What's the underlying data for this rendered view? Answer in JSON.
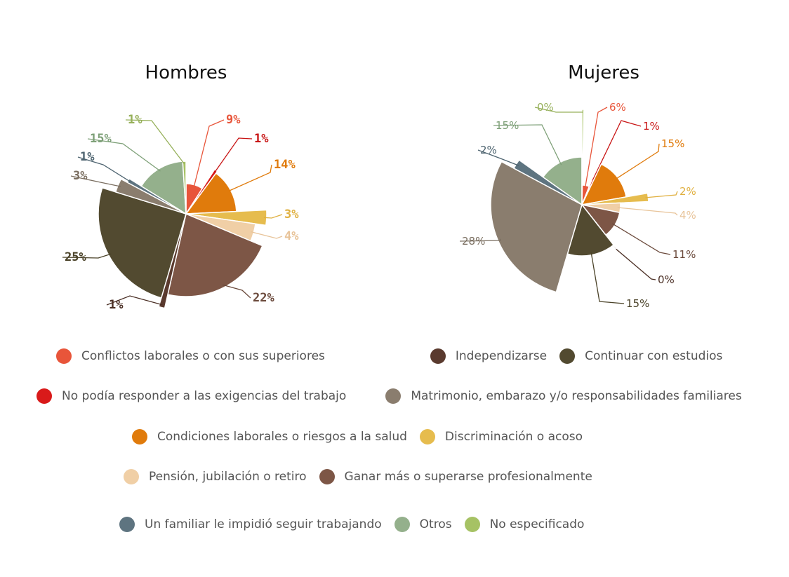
{
  "chart_data": [
    {
      "type": "pie",
      "title": "Hombres",
      "slices": [
        {
          "category": "Conflictos laborales o con sus superiores",
          "value": 9,
          "label": "9%"
        },
        {
          "category": "No podía responder a las exigencias del trabajo",
          "value": 1,
          "label": "1%"
        },
        {
          "category": "Condiciones laborales o riesgos a la salud",
          "value": 14,
          "label": "14%"
        },
        {
          "category": "Discriminación o acoso",
          "value": 3,
          "label": "3%"
        },
        {
          "category": "Pensión, jubilación o retiro",
          "value": 4,
          "label": "4%"
        },
        {
          "category": "Ganar más o superarse profesionalmente",
          "value": 22,
          "label": "22%"
        },
        {
          "category": "Independizarse",
          "value": 1,
          "label": "1%"
        },
        {
          "category": "Continuar con estudios",
          "value": 25,
          "label": "25%"
        },
        {
          "category": "Matrimonio, embarazo y/o responsabilidades familiares",
          "value": 3,
          "label": "3%"
        },
        {
          "category": "Un familiar le impidió seguir trabajando",
          "value": 1,
          "label": "1%"
        },
        {
          "category": "Otros",
          "value": 15,
          "label": "15%"
        },
        {
          "category": "No especificado",
          "value": 1,
          "label": "1%"
        }
      ]
    },
    {
      "type": "pie",
      "title": "Mujeres",
      "slices": [
        {
          "category": "Conflictos laborales o con sus superiores",
          "value": 6,
          "label": "6%"
        },
        {
          "category": "No podía responder a las exigencias del trabajo",
          "value": 1,
          "label": "1%"
        },
        {
          "category": "Condiciones laborales o riesgos a la salud",
          "value": 15,
          "label": "15%"
        },
        {
          "category": "Discriminación o acoso",
          "value": 2,
          "label": "2%"
        },
        {
          "category": "Pensión, jubilación o retiro",
          "value": 4,
          "label": "4%"
        },
        {
          "category": "Ganar más o superarse profesionalmente",
          "value": 11,
          "label": "11%"
        },
        {
          "category": "Independizarse",
          "value": 0,
          "label": "0%"
        },
        {
          "category": "Continuar con estudios",
          "value": 15,
          "label": "15%"
        },
        {
          "category": "Matrimonio, embarazo y/o responsabilidades familiares",
          "value": 28,
          "label": "28%"
        },
        {
          "category": "Un familiar le impidió seguir trabajando",
          "value": 2,
          "label": "2%"
        },
        {
          "category": "Otros",
          "value": 15,
          "label": "15%"
        },
        {
          "category": "No especificado",
          "value": 0,
          "label": "0%"
        }
      ]
    }
  ],
  "legend": {
    "position": "bottom",
    "items": [
      {
        "label": "Conflictos laborales o con sus superiores",
        "color": "#e8553a"
      },
      {
        "label": "Independizarse",
        "color": "#5a3a2e"
      },
      {
        "label": "Continuar con estudios",
        "color": "#524a30"
      },
      {
        "label": "No podía responder a las exigencias del trabajo",
        "color": "#d91a1a"
      },
      {
        "label": "Matrimonio, embarazo y/o responsabilidades familiares",
        "color": "#8a7d6e"
      },
      {
        "label": "Condiciones laborales o riesgos a la salud",
        "color": "#e07b0c"
      },
      {
        "label": "Discriminación o acoso",
        "color": "#e6bc4e"
      },
      {
        "label": "Pensión, jubilación o retiro",
        "color": "#f0cfa6"
      },
      {
        "label": "Ganar más o superarse profesionalmente",
        "color": "#7d5646"
      },
      {
        "label": "Un familiar le impidió seguir trabajando",
        "color": "#5e7480"
      },
      {
        "label": "Otros",
        "color": "#94b08c"
      },
      {
        "label": "No especificado",
        "color": "#a6c264"
      }
    ]
  },
  "label_colors": {
    "Conflictos laborales o con sus superiores": "#e8553a",
    "No podía responder a las exigencias del trabajo": "#c81414",
    "Condiciones laborales o riesgos a la salud": "#e07b0c",
    "Discriminación o acoso": "#e0b040",
    "Pensión, jubilación o retiro": "#e8c49a",
    "Ganar más o superarse profesionalmente": "#6b4a3c",
    "Independizarse": "#4a2e24",
    "Continuar con estudios": "#4a4228",
    "Matrimonio, embarazo y/o responsabilidades familiares": "#7a6e60",
    "Un familiar le impidió seguir trabajando": "#4e6470",
    "Otros": "#7ea078",
    "No especificado": "#96b05a"
  }
}
